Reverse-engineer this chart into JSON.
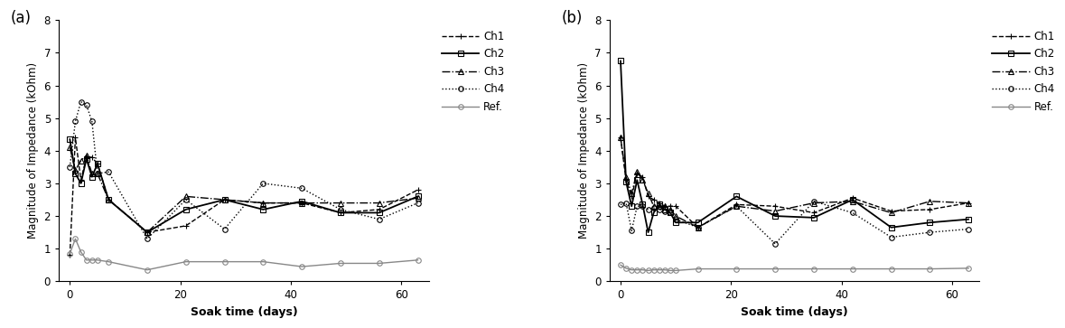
{
  "panel_a": {
    "Ch1": {
      "x": [
        0,
        1,
        2,
        3,
        4,
        5,
        7,
        14,
        21,
        28,
        35,
        42,
        49,
        56,
        63
      ],
      "y": [
        0.8,
        4.4,
        3.1,
        3.8,
        3.8,
        3.6,
        2.5,
        1.5,
        1.7,
        2.5,
        2.4,
        2.4,
        2.1,
        2.2,
        2.8
      ],
      "style": "--",
      "marker": "+",
      "color": "#000000",
      "lw": 1.0,
      "ms": 5
    },
    "Ch2": {
      "x": [
        0,
        1,
        2,
        3,
        4,
        5,
        7,
        14,
        21,
        28,
        35,
        42,
        49,
        56,
        63
      ],
      "y": [
        4.35,
        3.3,
        3.0,
        3.75,
        3.2,
        3.6,
        2.5,
        1.5,
        2.2,
        2.5,
        2.2,
        2.45,
        2.1,
        2.1,
        2.6
      ],
      "style": "-",
      "marker": "s",
      "color": "#000000",
      "lw": 1.3,
      "ms": 4
    },
    "Ch3": {
      "x": [
        0,
        1,
        2,
        3,
        4,
        5,
        7,
        14,
        21,
        28,
        35,
        42,
        49,
        56,
        63
      ],
      "y": [
        4.1,
        3.4,
        3.7,
        3.85,
        3.3,
        3.3,
        2.5,
        1.5,
        2.6,
        2.5,
        2.4,
        2.4,
        2.4,
        2.4,
        2.55
      ],
      "style": "-.",
      "marker": "^",
      "color": "#000000",
      "lw": 1.0,
      "ms": 4
    },
    "Ch4": {
      "x": [
        0,
        1,
        2,
        3,
        4,
        5,
        7,
        14,
        21,
        28,
        35,
        42,
        49,
        56,
        63
      ],
      "y": [
        3.5,
        4.9,
        5.5,
        5.4,
        4.9,
        3.3,
        3.35,
        1.3,
        2.5,
        1.6,
        3.0,
        2.85,
        2.2,
        1.9,
        2.4
      ],
      "style": ":",
      "marker": "o",
      "color": "#000000",
      "lw": 1.0,
      "ms": 4
    },
    "Ref": {
      "x": [
        0,
        1,
        2,
        3,
        4,
        5,
        7,
        14,
        21,
        28,
        35,
        42,
        49,
        56,
        63
      ],
      "y": [
        0.85,
        1.3,
        0.9,
        0.65,
        0.65,
        0.65,
        0.6,
        0.35,
        0.6,
        0.6,
        0.6,
        0.45,
        0.55,
        0.55,
        0.65
      ],
      "style": "-",
      "marker": "o",
      "color": "#888888",
      "lw": 1.0,
      "ms": 4
    }
  },
  "panel_b": {
    "Ch1": {
      "x": [
        0,
        1,
        2,
        3,
        4,
        5,
        6,
        7,
        8,
        9,
        10,
        14,
        21,
        28,
        35,
        42,
        49,
        56,
        63
      ],
      "y": [
        4.4,
        3.1,
        2.6,
        3.3,
        3.2,
        2.6,
        2.5,
        2.4,
        2.3,
        2.3,
        2.3,
        1.65,
        2.35,
        2.3,
        2.1,
        2.55,
        2.15,
        2.2,
        2.4
      ],
      "style": "--",
      "marker": "+",
      "color": "#000000",
      "lw": 1.0,
      "ms": 5
    },
    "Ch2": {
      "x": [
        0,
        1,
        2,
        3,
        4,
        5,
        6,
        7,
        8,
        9,
        10,
        14,
        21,
        28,
        35,
        42,
        49,
        56,
        63
      ],
      "y": [
        6.75,
        3.05,
        2.3,
        3.1,
        2.35,
        1.5,
        2.1,
        2.35,
        2.2,
        2.1,
        1.8,
        1.8,
        2.6,
        2.0,
        1.95,
        2.5,
        1.65,
        1.8,
        1.9
      ],
      "style": "-",
      "marker": "s",
      "color": "#000000",
      "lw": 1.3,
      "ms": 4
    },
    "Ch3": {
      "x": [
        0,
        1,
        2,
        3,
        4,
        5,
        6,
        7,
        8,
        9,
        10,
        14,
        21,
        28,
        35,
        42,
        49,
        56,
        63
      ],
      "y": [
        4.4,
        3.2,
        2.7,
        3.35,
        3.1,
        2.7,
        2.3,
        2.3,
        2.3,
        2.2,
        2.0,
        1.65,
        2.3,
        2.15,
        2.4,
        2.45,
        2.1,
        2.45,
        2.4
      ],
      "style": "-.",
      "marker": "^",
      "color": "#000000",
      "lw": 1.0,
      "ms": 4
    },
    "Ch4": {
      "x": [
        0,
        1,
        2,
        3,
        4,
        5,
        6,
        7,
        8,
        9,
        10,
        14,
        21,
        28,
        35,
        42,
        49,
        56,
        63
      ],
      "y": [
        2.35,
        2.4,
        1.55,
        2.3,
        2.3,
        2.2,
        2.25,
        2.2,
        2.15,
        2.1,
        1.9,
        1.65,
        2.3,
        1.15,
        2.45,
        2.1,
        1.35,
        1.5,
        1.6
      ],
      "style": ":",
      "marker": "o",
      "color": "#000000",
      "lw": 1.0,
      "ms": 4
    },
    "Ref": {
      "x": [
        0,
        1,
        2,
        3,
        4,
        5,
        6,
        7,
        8,
        9,
        10,
        14,
        21,
        28,
        35,
        42,
        49,
        56,
        63
      ],
      "y": [
        0.5,
        0.4,
        0.35,
        0.35,
        0.35,
        0.33,
        0.35,
        0.35,
        0.35,
        0.33,
        0.33,
        0.38,
        0.38,
        0.38,
        0.38,
        0.38,
        0.38,
        0.38,
        0.4
      ],
      "style": "-",
      "marker": "o",
      "color": "#888888",
      "lw": 1.0,
      "ms": 4
    }
  },
  "ylim": [
    0,
    8
  ],
  "yticks": [
    0,
    1,
    2,
    3,
    4,
    5,
    6,
    7,
    8
  ],
  "xlim": [
    -2,
    65
  ],
  "xticks": [
    0,
    20,
    40,
    60
  ],
  "ylabel": "Magnitude of Impedance (kOhm)",
  "xlabel": "Soak time (days)",
  "legend_labels": [
    "Ch1",
    "Ch2",
    "Ch3",
    "Ch4",
    "Ref."
  ],
  "panel_labels": [
    "(a)",
    "(b)"
  ],
  "background_color": "#ffffff"
}
